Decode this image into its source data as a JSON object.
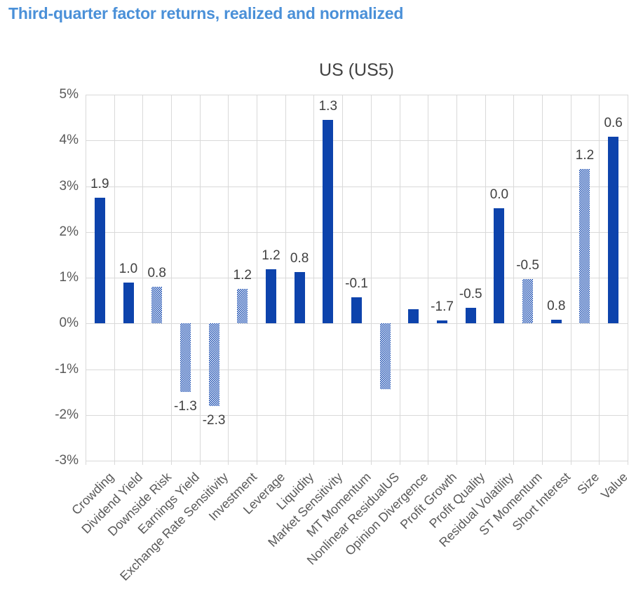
{
  "page": {
    "title": "Third-quarter factor returns, realized and normalized"
  },
  "chart": {
    "title": "US (US5)"
  },
  "chart_data": {
    "type": "bar",
    "title": "US (US5)",
    "categories": [
      "Crowding",
      "Dividend Yield",
      "Downside Risk",
      "Earnings Yield",
      "Exchange Rate Sensitivity",
      "Investment",
      "Leverage",
      "Liquidity",
      "Market Sensitivity",
      "MT Momentum",
      "Nonlinear ResidualUS",
      "Opinion Divergence",
      "Profit Growth",
      "Profit Quality",
      "Residual Volatility",
      "ST Momentum",
      "Short Interest",
      "Size",
      "Value"
    ],
    "series": [
      {
        "name": "Realized return (bar height, %)",
        "values": [
          2.75,
          0.89,
          0.8,
          -1.5,
          -1.8,
          0.75,
          1.18,
          1.12,
          4.45,
          0.57,
          -1.43,
          0.31,
          0.06,
          0.34,
          2.52,
          0.97,
          0.08,
          3.37,
          4.08
        ]
      },
      {
        "name": "Normalized return (data label)",
        "values": [
          1.9,
          1.0,
          0.8,
          -1.3,
          -2.3,
          1.2,
          1.2,
          0.8,
          1.3,
          -0.1,
          null,
          null,
          -1.7,
          -0.5,
          0.0,
          -0.5,
          0.8,
          1.2,
          0.6
        ]
      }
    ],
    "data_labels": [
      "1.9",
      "1.0",
      "0.8",
      "-1.3",
      "-2.3",
      "1.2",
      "1.2",
      "0.8",
      "1.3",
      "-0.1",
      "",
      "",
      "-1.7",
      "-0.5",
      "0.0",
      "-0.5",
      "0.8",
      "1.2",
      "0.6"
    ],
    "hatched": [
      false,
      false,
      true,
      true,
      true,
      true,
      false,
      false,
      false,
      false,
      true,
      false,
      false,
      false,
      false,
      true,
      false,
      true,
      false
    ],
    "yticks": [
      "5%",
      "4%",
      "3%",
      "2%",
      "1%",
      "0%",
      "-1%",
      "-2%",
      "-3%"
    ],
    "ytick_values": [
      5,
      4,
      3,
      2,
      1,
      0,
      -1,
      -2,
      -3
    ],
    "ylim": [
      -3,
      5
    ],
    "grid": true,
    "legend": "none",
    "xlabel": "",
    "ylabel": ""
  },
  "colors": {
    "bar_blue": "#0d43ac",
    "gridline": "#d9d9d9",
    "axis_text": "#595959",
    "label_text": "#404040",
    "page_title_blue": "#4a90d8",
    "background": "#ffffff"
  }
}
